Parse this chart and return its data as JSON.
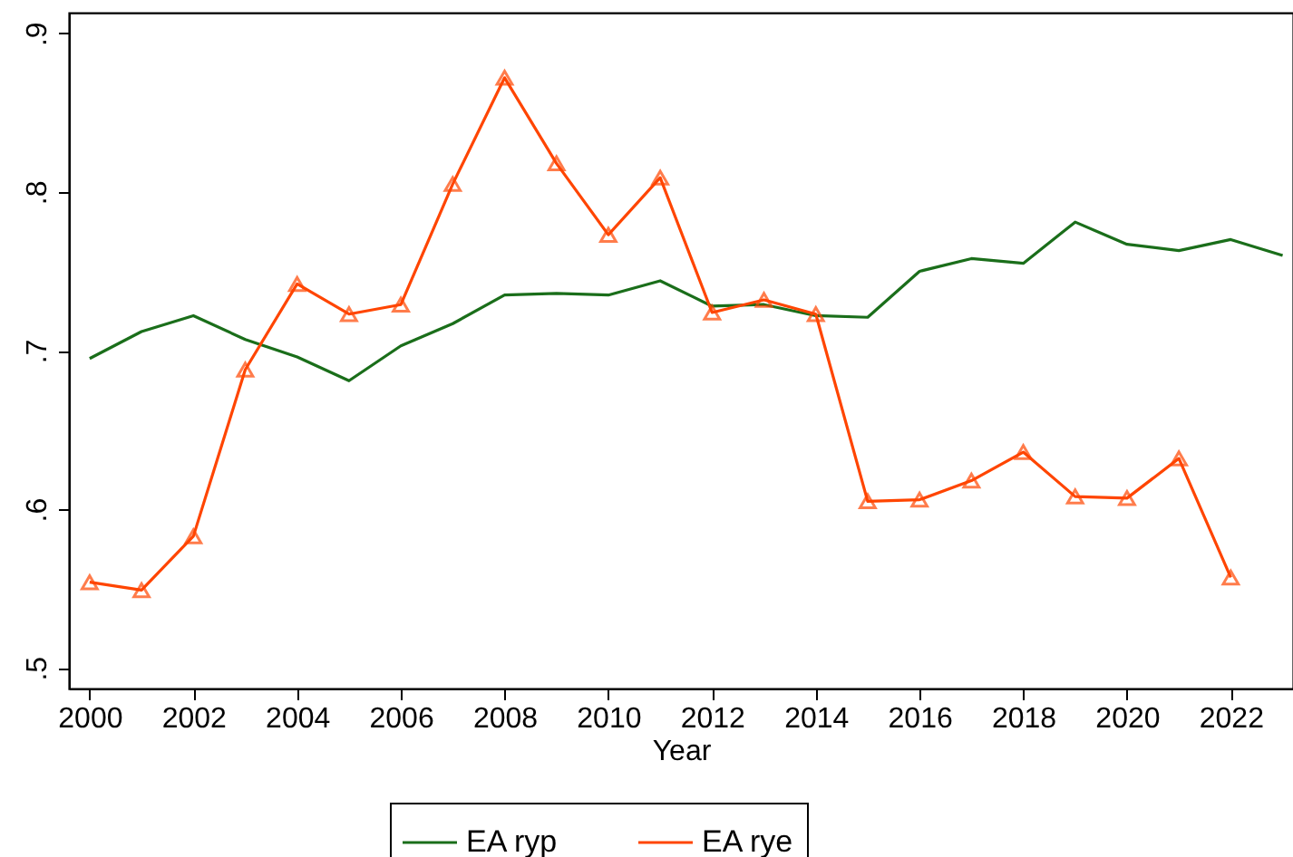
{
  "chart_data": {
    "type": "line",
    "xlabel": "Year",
    "x": [
      2000,
      2001,
      2002,
      2003,
      2004,
      2005,
      2006,
      2007,
      2008,
      2009,
      2010,
      2011,
      2012,
      2013,
      2014,
      2015,
      2016,
      2017,
      2018,
      2019,
      2020,
      2021,
      2022,
      2023
    ],
    "series": [
      {
        "name": "EA ryp",
        "color": "#1a6e1a",
        "marker": "none",
        "values": [
          0.695,
          0.712,
          0.722,
          0.707,
          0.696,
          0.681,
          0.703,
          0.717,
          0.735,
          0.736,
          0.735,
          0.744,
          0.728,
          0.729,
          0.722,
          0.721,
          0.75,
          0.758,
          0.755,
          0.781,
          0.767,
          0.763,
          0.77,
          0.76
        ]
      },
      {
        "name": "EA rye",
        "color": "#ff4500",
        "marker": "triangle",
        "values": [
          0.554,
          0.549,
          0.583,
          0.688,
          0.742,
          0.723,
          0.729,
          0.805,
          0.872,
          0.818,
          0.773,
          0.809,
          0.724,
          0.732,
          0.723,
          0.605,
          0.606,
          0.618,
          0.636,
          0.608,
          0.607,
          0.632,
          0.557,
          null
        ]
      }
    ],
    "xlim": [
      1999.6,
      2023.2
    ],
    "xticks": [
      2000,
      2002,
      2004,
      2006,
      2008,
      2010,
      2012,
      2014,
      2016,
      2018,
      2020,
      2022
    ],
    "ylim": [
      0.487,
      0.913
    ],
    "yticks": [
      {
        "value": 0.5,
        "label": ".5"
      },
      {
        "value": 0.6,
        "label": ".6"
      },
      {
        "value": 0.7,
        "label": ".7"
      },
      {
        "value": 0.8,
        "label": ".8"
      },
      {
        "value": 0.9,
        "label": ".9"
      }
    ],
    "legend": "bottom"
  }
}
